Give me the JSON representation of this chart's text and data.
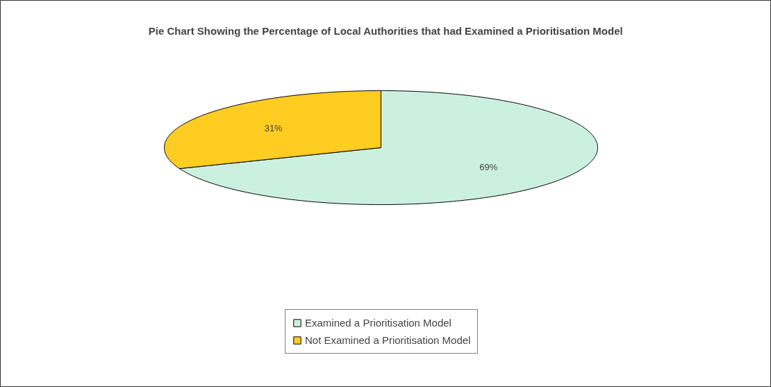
{
  "chart_data": {
    "type": "pie",
    "title": "Pie Chart Showing the Percentage of Local Authorities that had Examined a Prioritisation Model",
    "categories": [
      "Examined a Prioritisation Model",
      "Not Examined a Prioritisation Model"
    ],
    "values": [
      69,
      31
    ],
    "colors": [
      "#ccf0e0",
      "#ffcc22"
    ],
    "value_labels": [
      "69%",
      "31%"
    ],
    "legend": "bottom"
  }
}
